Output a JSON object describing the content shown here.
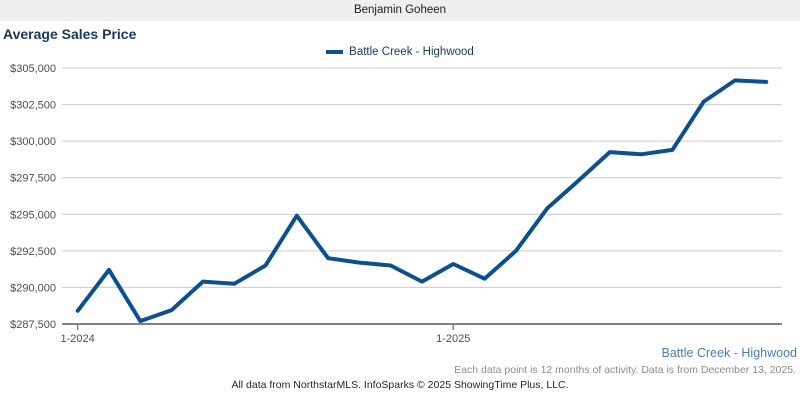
{
  "header": {
    "agent_name": "Benjamin Goheen"
  },
  "chart": {
    "title": "Average Sales Price",
    "legend_label": "Battle Creek - Highwood",
    "series_label": "Battle Creek - Highwood",
    "footnote": "Each data point is 12 months of activity. Data is from December 13, 2025.",
    "attribution": "All data from NorthstarMLS. InfoSparks © 2025 ShowingTime Plus, LLC."
  },
  "colors": {
    "line_color": "#0d508f",
    "navy": "#17375e",
    "series_label_color": "#4a7cb5",
    "topbar_bg": "#efefef",
    "gridline": "#cccccc",
    "axis_line": "#808080",
    "axis_text": "#4d4d4d"
  },
  "chart_data": {
    "type": "line",
    "title": "Average Sales Price",
    "xlabel": "",
    "ylabel": "",
    "grid": true,
    "legend_position": "top-center",
    "ylim": [
      287500,
      305000
    ],
    "y_ticks": [
      287500,
      290000,
      292500,
      295000,
      297500,
      300000,
      302500,
      305000
    ],
    "y_tick_format": "$,",
    "x": [
      "1-2024",
      "2-2024",
      "3-2024",
      "4-2024",
      "5-2024",
      "6-2024",
      "7-2024",
      "8-2024",
      "9-2024",
      "10-2024",
      "11-2024",
      "12-2024",
      "1-2025",
      "2-2025",
      "3-2025",
      "4-2025",
      "5-2025",
      "6-2025",
      "7-2025",
      "8-2025",
      "9-2025",
      "10-2025",
      "11-2025"
    ],
    "x_ticks": [
      {
        "index": 0,
        "label": "1-2024"
      },
      {
        "index": 12,
        "label": "1-2025"
      }
    ],
    "series": [
      {
        "name": "Battle Creek - Highwood",
        "values": [
          288400,
          291200,
          287700,
          288450,
          290400,
          290250,
          291500,
          294900,
          292000,
          291700,
          291500,
          290400,
          291600,
          290600,
          292500,
          295400,
          297300,
          299250,
          299100,
          299400,
          302700,
          304150,
          304050
        ]
      }
    ]
  }
}
